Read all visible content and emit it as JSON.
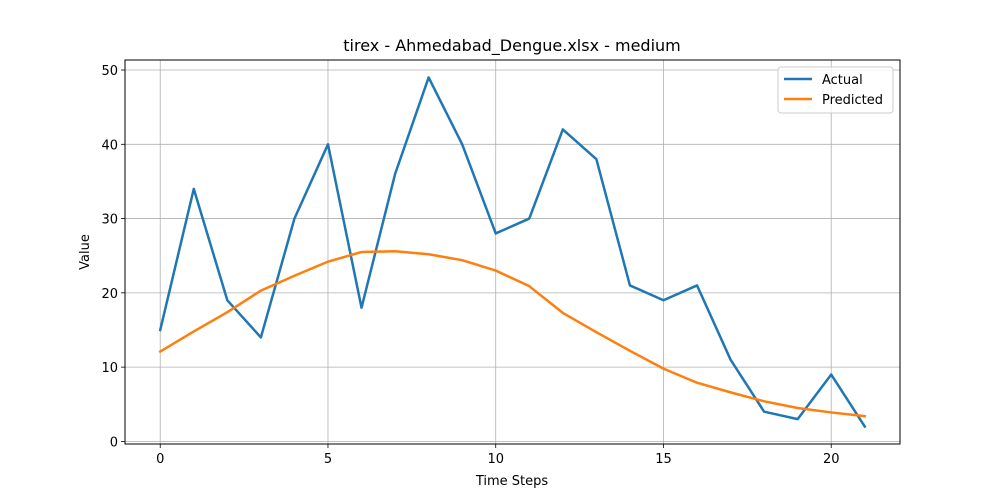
{
  "chart_data": {
    "type": "line",
    "title": "tirex - Ahmedabad_Dengue.xlsx - medium",
    "xlabel": "Time Steps",
    "ylabel": "Value",
    "x": [
      0,
      1,
      2,
      3,
      4,
      5,
      6,
      7,
      8,
      9,
      10,
      11,
      12,
      13,
      14,
      15,
      16,
      17,
      18,
      19,
      20,
      21
    ],
    "xlim": [
      -1.05,
      22.05
    ],
    "ylim": [
      -0.35,
      51.35
    ],
    "xticks": [
      0,
      5,
      10,
      15,
      20
    ],
    "yticks": [
      0,
      10,
      20,
      30,
      40,
      50
    ],
    "grid": true,
    "legend_position": "top-right",
    "series": [
      {
        "name": "Actual",
        "color": "#1f77b4",
        "values": [
          15,
          34,
          19,
          14,
          30,
          40,
          18,
          36,
          49,
          40,
          28,
          30,
          42,
          38,
          21,
          19,
          21,
          11,
          4,
          3,
          9,
          2
        ]
      },
      {
        "name": "Predicted",
        "color": "#ff7f0e",
        "values": [
          12.1,
          14.8,
          17.4,
          20.3,
          22.3,
          24.2,
          25.5,
          25.6,
          25.2,
          24.4,
          23.0,
          20.9,
          17.3,
          14.7,
          12.2,
          9.8,
          7.9,
          6.6,
          5.4,
          4.5,
          3.9,
          3.4
        ]
      }
    ]
  }
}
